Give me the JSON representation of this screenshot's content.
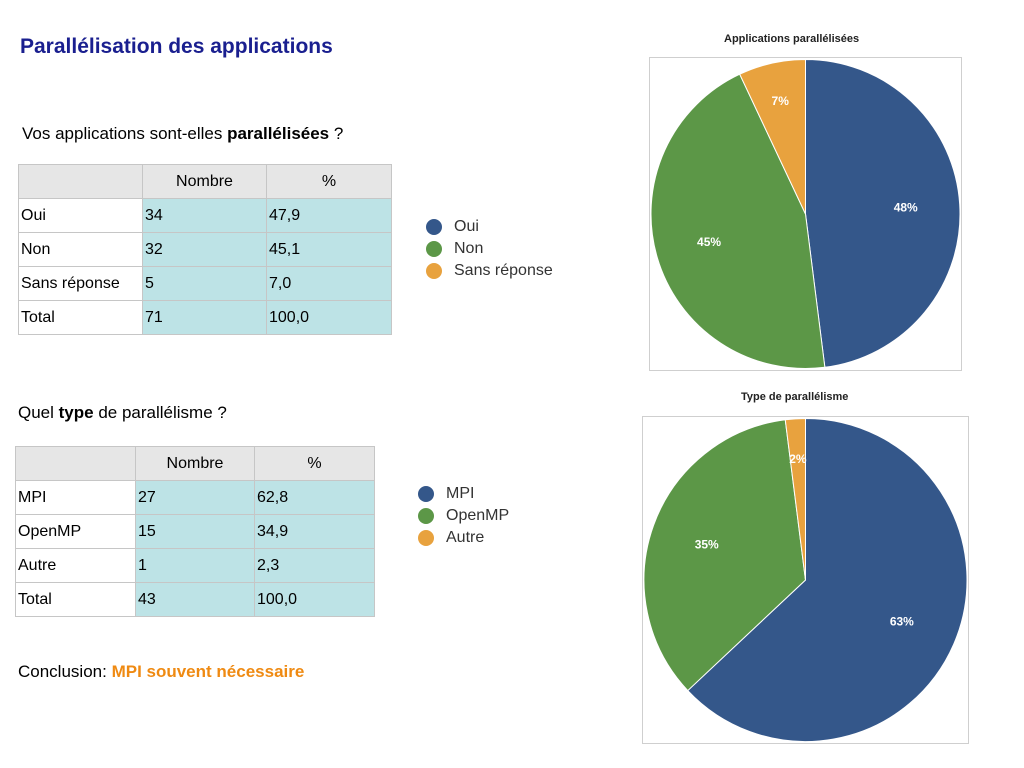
{
  "page": {
    "title": "Parallélisation des applications",
    "q1": {
      "pre": "Vos applications sont-elles ",
      "bold": "parallélisées",
      "post": " ?"
    },
    "q2": {
      "pre": "Quel ",
      "bold": "type",
      "post": " de parallélisme ?"
    },
    "conclusion": {
      "label": "Conclusion: ",
      "text": "MPI souvent nécessaire",
      "color": "#ef8a12"
    }
  },
  "table1": {
    "headers": [
      "",
      "Nombre",
      "%"
    ],
    "rows": [
      [
        "Oui",
        "34",
        "47,9"
      ],
      [
        "Non",
        "32",
        "45,1"
      ],
      [
        "Sans réponse",
        "5",
        "7,0"
      ],
      [
        "Total",
        "71",
        "100,0"
      ]
    ]
  },
  "table2": {
    "headers": [
      "",
      "Nombre",
      "%"
    ],
    "rows": [
      [
        "MPI",
        "27",
        "62,8"
      ],
      [
        "OpenMP",
        "15",
        "34,9"
      ],
      [
        "Autre",
        "1",
        "2,3"
      ],
      [
        "Total",
        "43",
        "100,0"
      ]
    ]
  },
  "chart_data": [
    {
      "type": "pie",
      "title": "Applications parallélisées",
      "categories": [
        "Oui",
        "Non",
        "Sans réponse"
      ],
      "values": [
        48,
        45,
        7
      ],
      "labels": [
        "48%",
        "45%",
        "7%"
      ],
      "colors": [
        "#34578a",
        "#5c9747",
        "#e8a23e"
      ],
      "legend": "left"
    },
    {
      "type": "pie",
      "title": "Type de parallélisme",
      "categories": [
        "MPI",
        "OpenMP",
        "Autre"
      ],
      "values": [
        63,
        35,
        2
      ],
      "labels": [
        "63%",
        "35%",
        "2%"
      ],
      "colors": [
        "#34578a",
        "#5c9747",
        "#e8a23e"
      ],
      "legend": "left"
    }
  ]
}
